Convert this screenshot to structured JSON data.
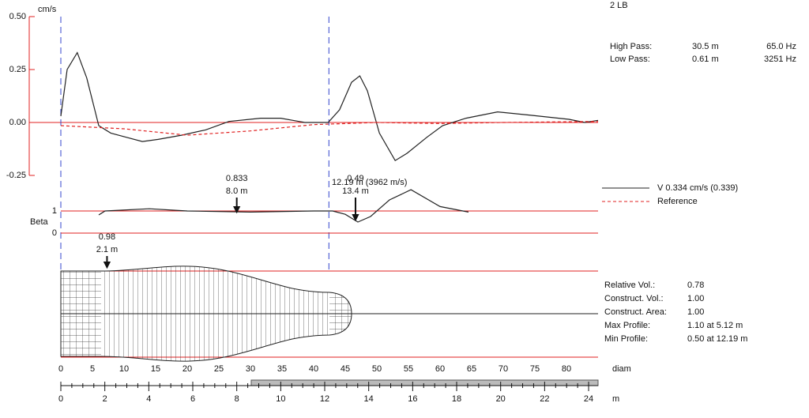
{
  "header": {
    "pile": "2 LB",
    "units": "cm/s"
  },
  "filters": {
    "rows": [
      [
        "High Pass:",
        "30.5 m",
        "65.0 Hz"
      ],
      [
        "Low Pass:",
        "0.61 m",
        "3251 Hz"
      ]
    ]
  },
  "velocity_chart": {
    "type": "line",
    "xlim": [
      0,
      85
    ],
    "ylim": [
      -0.25,
      0.5
    ],
    "yticks": [
      {
        "value": 0.5,
        "label": "0.50"
      },
      {
        "value": 0.25,
        "label": "0.25"
      },
      {
        "value": 0,
        "label": "0.00"
      },
      {
        "value": -0.25,
        "label": "-0.25"
      }
    ],
    "series": [
      {
        "name": "V  0.334 cm/s  (0.339)",
        "color": "#222222",
        "x": [
          0,
          1,
          2.6,
          4.1,
          6,
          7.9,
          10.4,
          12.9,
          15.4,
          19.1,
          22.9,
          26.6,
          31.6,
          34.8,
          38.6,
          42.3,
          44.1,
          46,
          47.3,
          48.5,
          50.4,
          52.9,
          54.8,
          57.9,
          60.4,
          64.1,
          69.1,
          74.1,
          80.4,
          82.9,
          85
        ],
        "values": [
          0.03,
          0.25,
          0.33,
          0.21,
          -0.015,
          -0.05,
          -0.07,
          -0.09,
          -0.08,
          -0.06,
          -0.035,
          0.005,
          0.02,
          0.02,
          0,
          0,
          0.06,
          0.19,
          0.22,
          0.15,
          -0.05,
          -0.18,
          -0.145,
          -0.07,
          -0.015,
          0.02,
          0.05,
          0.035,
          0.015,
          0,
          0.01
        ]
      },
      {
        "name": "Reference",
        "color": "#e02020",
        "dashed": true,
        "x": [
          0,
          10,
          20,
          30,
          40,
          50,
          60,
          70,
          85
        ],
        "values": [
          -0.015,
          -0.03,
          -0.06,
          -0.04,
          -0.01,
          0,
          -0.005,
          0,
          0.005
        ]
      }
    ]
  },
  "beta_chart": {
    "type": "line",
    "label": "Beta",
    "yticks": [
      1,
      0
    ],
    "series": {
      "color": "#222222",
      "x": [
        6,
        7,
        14,
        20,
        30,
        40,
        43,
        45,
        47,
        49,
        52,
        55.4,
        60,
        64.5
      ],
      "values": [
        0.82,
        1,
        1.1,
        1,
        0.95,
        1,
        1,
        0.85,
        0.5,
        0.75,
        1.5,
        1.96,
        1.2,
        0.95
      ]
    },
    "annotations": [
      {
        "beta": 0.833,
        "depth": 8.0,
        "depth_label": "8.0 m"
      },
      {
        "beta": 0.49,
        "depth": 13.4,
        "depth_label": "13.4 m"
      },
      {
        "beta": 0.98,
        "depth": 2.1,
        "depth_label": "2.1 m"
      }
    ],
    "toe": {
      "depth": 12.19,
      "label": "12.19 m (3962 m/s)"
    }
  },
  "profile_stats": {
    "rows": [
      [
        "Relative Vol.:",
        "0.78"
      ],
      [
        "Construct. Vol.:",
        "1.00"
      ],
      [
        "Construct. Area:",
        "1.00"
      ],
      [
        "Max Profile:",
        "1.10 at 5.12 m"
      ],
      [
        "Min Profile:",
        "0.50 at 12.19 m"
      ]
    ]
  },
  "diam_axis": {
    "label": "diam",
    "ticks": [
      0,
      5,
      10,
      15,
      20,
      25,
      30,
      35,
      40,
      45,
      50,
      55,
      60,
      65,
      70,
      75,
      80
    ]
  },
  "m_axis": {
    "label": "m",
    "xlim": [
      0,
      24.43
    ],
    "ticks": [
      0,
      2,
      4,
      6,
      8,
      10,
      12,
      14,
      16,
      18,
      20,
      22,
      24
    ]
  }
}
